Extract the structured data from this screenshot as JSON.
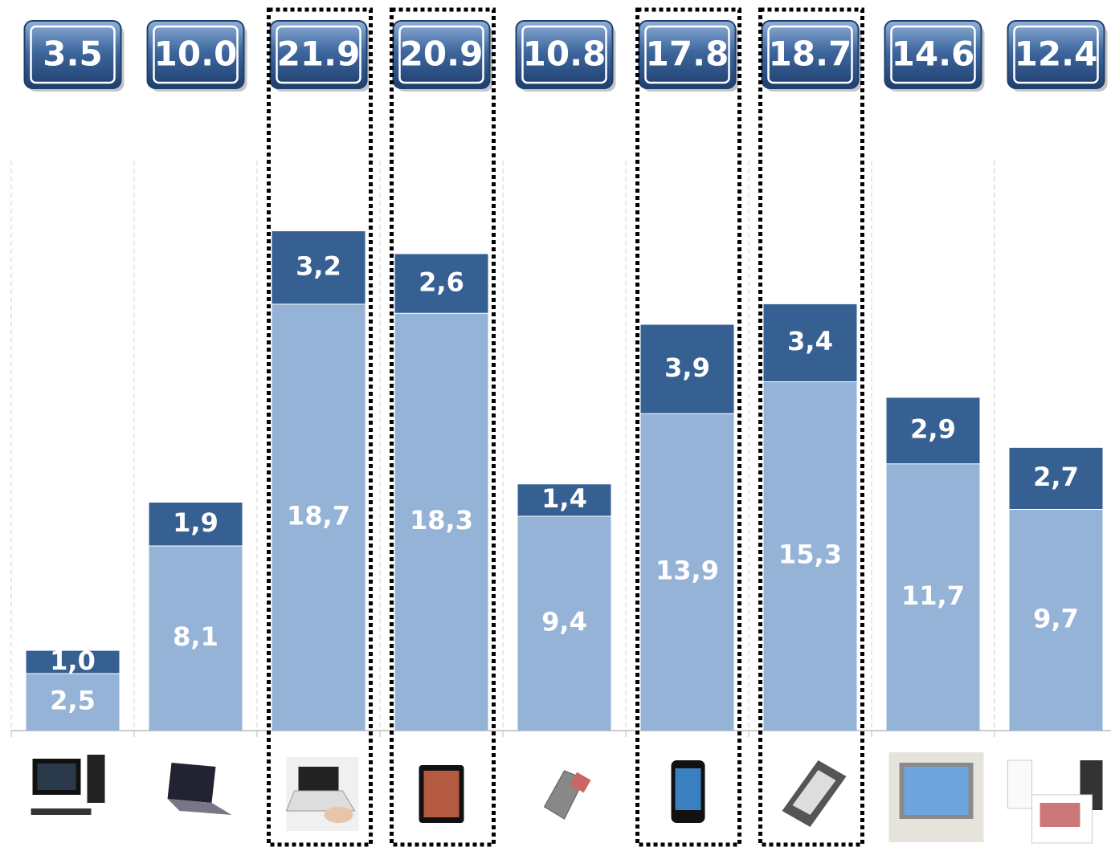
{
  "chart_data": {
    "type": "stacked-bar",
    "categories": [
      null,
      null,
      null,
      null,
      null,
      null,
      null,
      null,
      null
    ],
    "series": [
      {
        "color": "#95b3d7",
        "values": [
          2.5,
          8.1,
          18.7,
          18.3,
          9.4,
          13.9,
          15.3,
          11.7,
          9.7
        ],
        "value_labels": [
          "2,5",
          "8,1",
          "18,7",
          "18,3",
          "9,4",
          "13,9",
          "15,3",
          "11,7",
          "9,7"
        ]
      },
      {
        "color": "#376092",
        "values": [
          1.0,
          1.9,
          3.2,
          2.6,
          1.4,
          3.9,
          3.4,
          2.9,
          2.7
        ],
        "value_labels": [
          "1,0",
          "1,9",
          "3,2",
          "2,6",
          "1,4",
          "3,9",
          "3,4",
          "2,9",
          "2,7"
        ]
      }
    ],
    "totals": {
      "values": [
        3.5,
        10.0,
        21.9,
        20.9,
        10.8,
        17.8,
        18.7,
        14.6,
        12.4
      ],
      "value_labels": [
        "3.5",
        "10.0",
        "21.9",
        "20.9",
        "10.8",
        "17.8",
        "18.7",
        "14.6",
        "12.4"
      ]
    },
    "highlighted": [
      false,
      false,
      true,
      true,
      false,
      true,
      true,
      false,
      false
    ],
    "ylim": [
      0,
      25
    ]
  }
}
